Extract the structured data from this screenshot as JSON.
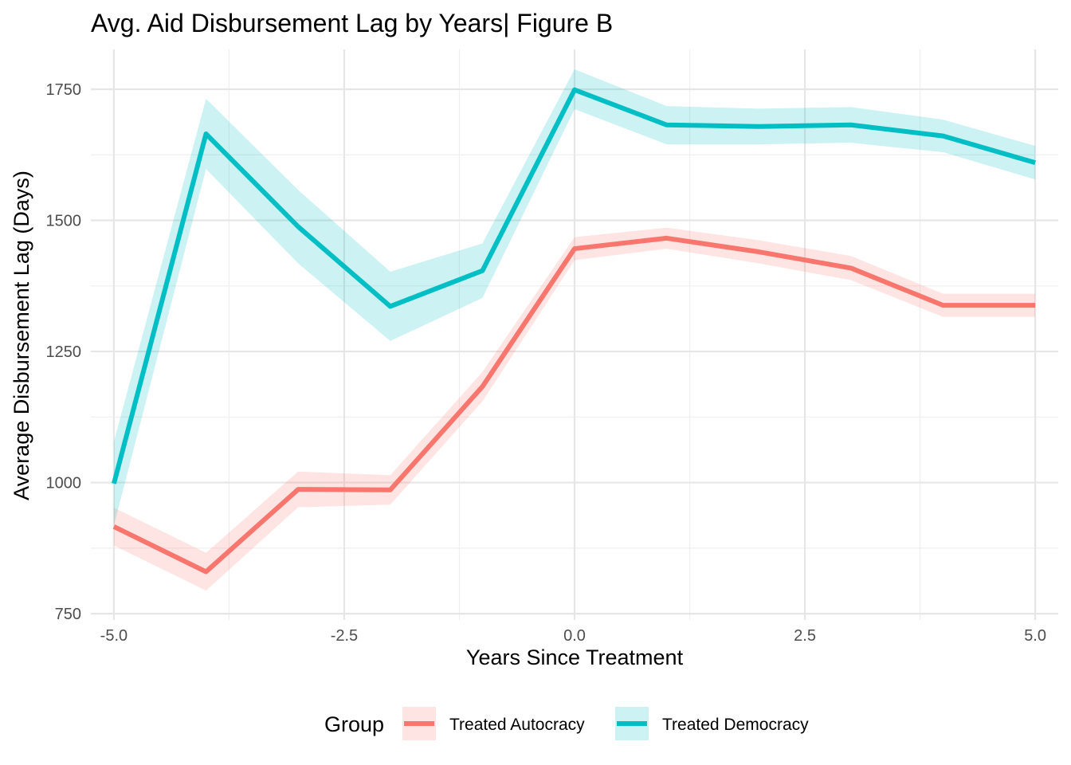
{
  "chart_data": {
    "type": "line",
    "title": "Avg. Aid Disbursement Lag by Years| Figure B",
    "xlabel": "Years Since Treatment",
    "ylabel": "Average Disbursement Lag (Days)",
    "xlim": [
      -5.25,
      5.25
    ],
    "ylim": [
      738,
      1826
    ],
    "x_ticks": [
      -5.0,
      -2.5,
      0.0,
      2.5,
      5.0
    ],
    "x_tick_labels": [
      "-5.0",
      "-2.5",
      "0.0",
      "2.5",
      "5.0"
    ],
    "y_ticks": [
      750,
      1000,
      1250,
      1500,
      1750
    ],
    "y_tick_labels": [
      "750",
      "1000",
      "1250",
      "1500",
      "1750"
    ],
    "grid": true,
    "legend": {
      "title": "Group",
      "position": "bottom"
    },
    "x": [
      -5,
      -4,
      -3,
      -2,
      -1,
      0,
      1,
      2,
      3,
      4,
      5
    ],
    "series": [
      {
        "name": "Treated Autocracy",
        "color": "#F8766D",
        "values": [
          916,
          830,
          987,
          986,
          1183,
          1446,
          1466,
          1440,
          1409,
          1338,
          1338
        ],
        "lower": [
          880,
          794,
          953,
          958,
          1155,
          1424,
          1446,
          1418,
          1386,
          1316,
          1316
        ],
        "upper": [
          952,
          866,
          1021,
          1014,
          1211,
          1468,
          1486,
          1462,
          1432,
          1360,
          1360
        ]
      },
      {
        "name": "Treated Democracy",
        "color": "#00BFC4",
        "values": [
          998,
          1665,
          1488,
          1336,
          1404,
          1749,
          1682,
          1679,
          1682,
          1661,
          1610
        ],
        "lower": [
          918,
          1598,
          1418,
          1270,
          1352,
          1712,
          1645,
          1645,
          1648,
          1630,
          1578
        ],
        "upper": [
          1078,
          1732,
          1558,
          1402,
          1456,
          1788,
          1718,
          1713,
          1716,
          1692,
          1642
        ]
      }
    ]
  }
}
